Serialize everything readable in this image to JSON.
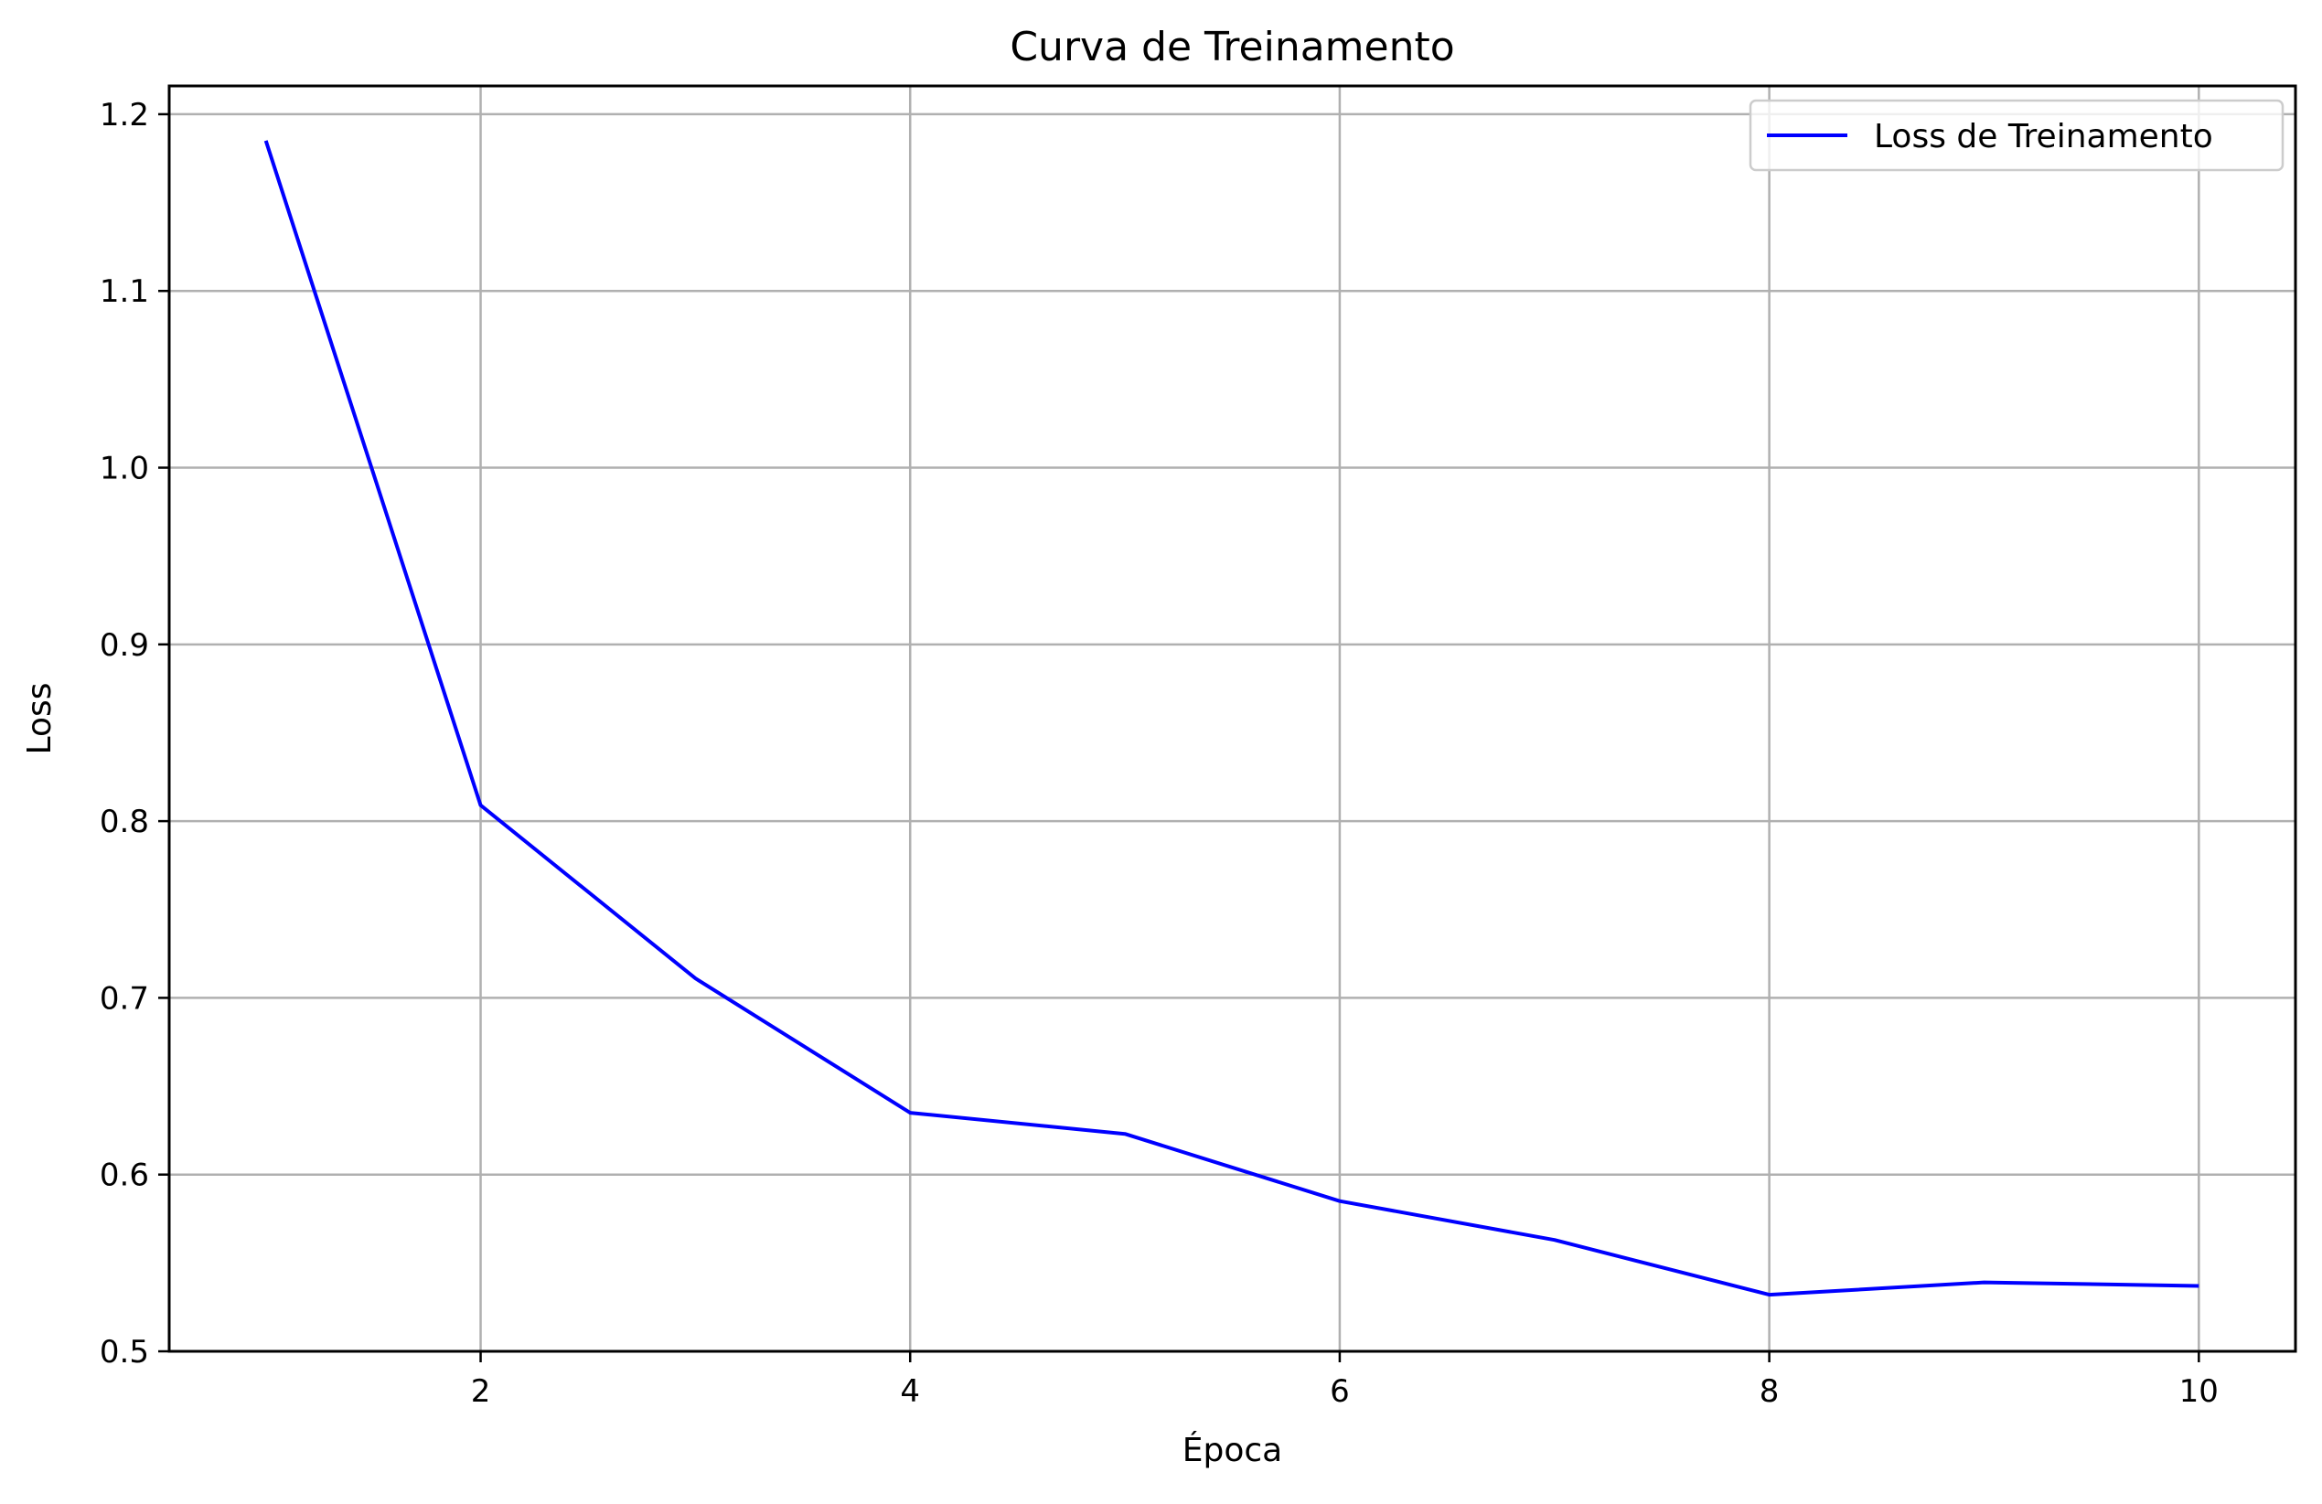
{
  "chart_data": {
    "type": "line",
    "title": "Curva de Treinamento",
    "xlabel": "Época",
    "ylabel": "Loss",
    "xlim": [
      0.55,
      10.45
    ],
    "ylim": [
      0.5,
      1.216
    ],
    "xticks": [
      2,
      4,
      6,
      8,
      10
    ],
    "xtick_labels": [
      "2",
      "4",
      "6",
      "8",
      "10"
    ],
    "yticks": [
      0.5,
      0.6,
      0.7,
      0.8,
      0.9,
      1.0,
      1.1,
      1.2
    ],
    "ytick_labels": [
      "0.5",
      "0.6",
      "0.7",
      "0.8",
      "0.9",
      "1.0",
      "1.1",
      "1.2"
    ],
    "grid": true,
    "legend_position": "top-right",
    "series": [
      {
        "name": "Loss de Treinamento",
        "color": "#0000ff",
        "x": [
          1,
          2,
          3,
          4,
          5,
          6,
          7,
          8,
          9,
          10
        ],
        "values": [
          1.185,
          0.809,
          0.711,
          0.635,
          0.623,
          0.585,
          0.563,
          0.532,
          0.539,
          0.537
        ]
      }
    ]
  }
}
